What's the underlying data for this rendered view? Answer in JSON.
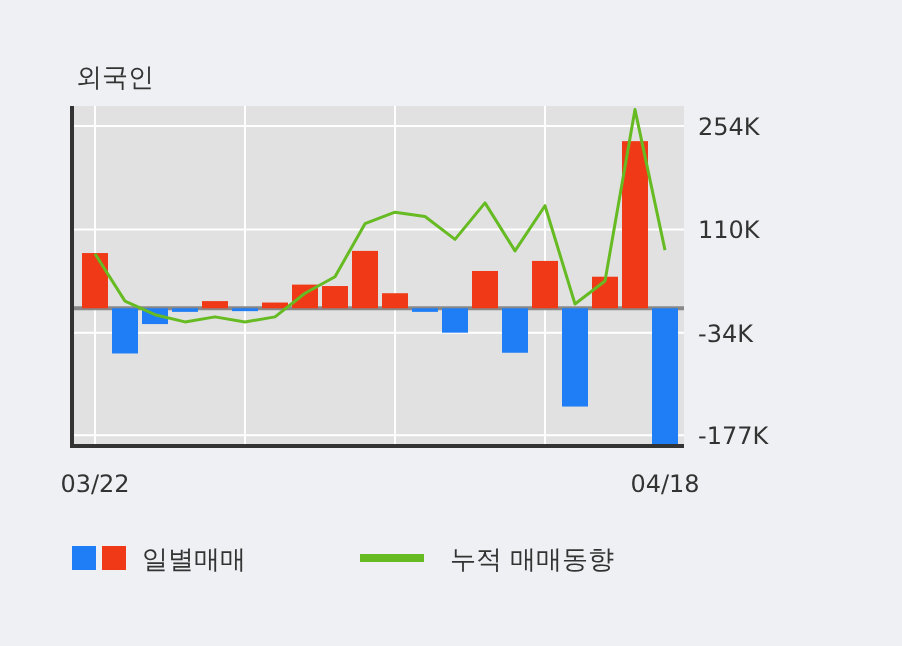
{
  "chart_data": {
    "type": "bar",
    "title": "외국인",
    "categories": [
      "03/22",
      null,
      null,
      null,
      null,
      null,
      null,
      null,
      null,
      null,
      null,
      null,
      null,
      null,
      null,
      null,
      null,
      null,
      null,
      "04/18"
    ],
    "series": [
      {
        "name": "일별매매",
        "colors": [
          "#f03a17",
          "#1f7ef5",
          "#1f7ef5",
          "#1f7ef5",
          "#f03a17",
          "#1f7ef5",
          "#f03a17",
          "#f03a17",
          "#f03a17",
          "#f03a17",
          "#f03a17",
          "#1f7ef5",
          "#1f7ef5",
          "#f03a17",
          "#1f7ef5",
          "#f03a17",
          "#1f7ef5",
          "#f03a17",
          "#f03a17",
          "#1f7ef5"
        ],
        "values": [
          77,
          -63,
          -22,
          -5,
          10,
          -4,
          8,
          33,
          31,
          80,
          21,
          -5,
          -34,
          52,
          -62,
          66,
          -137,
          44,
          233,
          -190
        ]
      },
      {
        "name": "누적 매매동향",
        "type": "line",
        "color": "#66bb22",
        "values": [
          76,
          10,
          -9,
          -19,
          -12,
          -19,
          -12,
          21,
          44,
          118,
          134,
          128,
          96,
          147,
          80,
          143,
          6,
          38,
          277,
          81
        ]
      }
    ],
    "ylim": [
      -192,
      282
    ],
    "yticks": [
      {
        "value": 254,
        "label": "254K"
      },
      {
        "value": 110,
        "label": "110K"
      },
      {
        "value": -34,
        "label": "-34K"
      },
      {
        "value": -177,
        "label": "-177K"
      }
    ],
    "ref_lines": [
      {
        "axis": "y",
        "value": 0,
        "color": "#888888"
      }
    ],
    "grid": true,
    "legend": "bottom"
  }
}
